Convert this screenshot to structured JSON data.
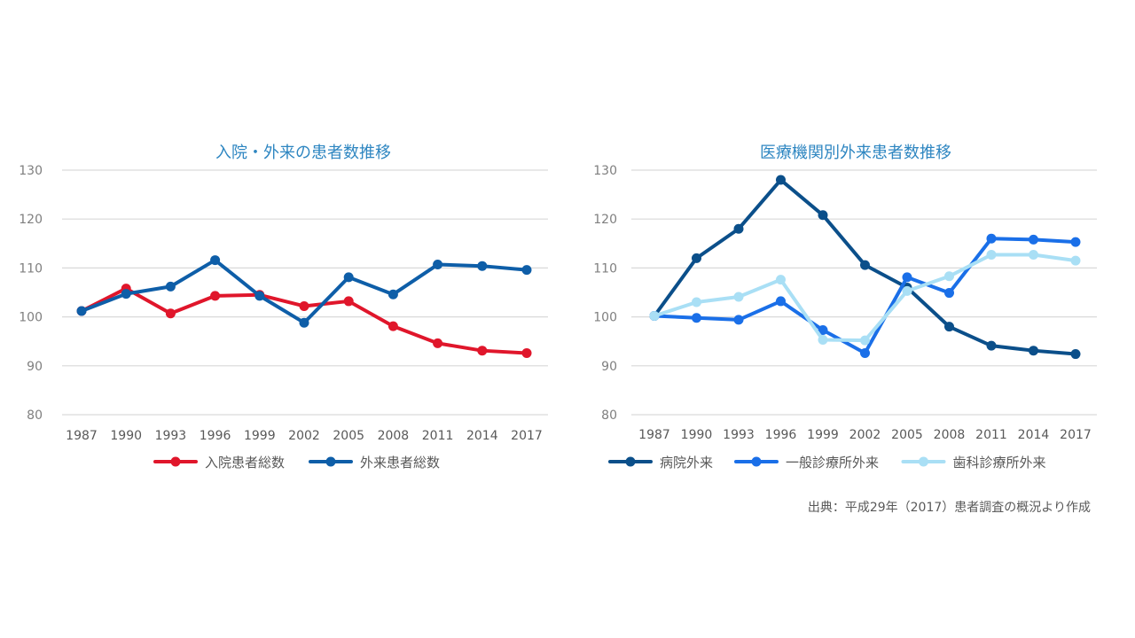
{
  "source_note": "出典：平成29年（2017）患者調査の概況より作成",
  "chart_data": [
    {
      "type": "line",
      "title": "入院・外来の患者数推移",
      "title_color": "#2E86C1",
      "xlabel": "",
      "ylabel": "",
      "ylim": [
        80,
        130
      ],
      "yticks": [
        80,
        90,
        100,
        110,
        120,
        130
      ],
      "grid": true,
      "legend_position": "bottom",
      "categories": [
        "1987",
        "1990",
        "1993",
        "1996",
        "1999",
        "2002",
        "2005",
        "2008",
        "2011",
        "2014",
        "2017"
      ],
      "series": [
        {
          "name": "入院患者総数",
          "color": "#E0162B",
          "values": [
            101.2,
            105.8,
            100.7,
            104.3,
            104.5,
            102.2,
            103.2,
            98.1,
            94.6,
            93.1,
            92.6
          ]
        },
        {
          "name": "外来患者総数",
          "color": "#0E5EA8",
          "values": [
            101.2,
            104.7,
            106.2,
            111.6,
            104.3,
            98.8,
            108.1,
            104.6,
            110.7,
            110.4,
            109.6
          ]
        }
      ]
    },
    {
      "type": "line",
      "title": "医療機関別外来患者数推移",
      "title_color": "#2E86C1",
      "xlabel": "",
      "ylabel": "",
      "ylim": [
        80,
        130
      ],
      "yticks": [
        80,
        90,
        100,
        110,
        120,
        130
      ],
      "grid": true,
      "legend_position": "bottom",
      "categories": [
        "1987",
        "1990",
        "1993",
        "1996",
        "1999",
        "2002",
        "2005",
        "2008",
        "2011",
        "2014",
        "2017"
      ],
      "series": [
        {
          "name": "病院外来",
          "color": "#0B4F8A",
          "values": [
            100.2,
            112.0,
            118.0,
            128.0,
            120.8,
            110.6,
            106.0,
            98.0,
            94.1,
            93.1,
            92.4
          ]
        },
        {
          "name": "一般診療所外来",
          "color": "#1A6FE8",
          "values": [
            100.2,
            99.8,
            99.4,
            103.2,
            97.3,
            92.6,
            108.1,
            104.9,
            116.0,
            115.8,
            115.3
          ]
        },
        {
          "name": "歯科診療所外来",
          "color": "#A9DFF5",
          "values": [
            100.2,
            103.0,
            104.1,
            107.6,
            95.3,
            95.2,
            105.3,
            108.3,
            112.7,
            112.7,
            111.5
          ]
        }
      ]
    }
  ]
}
